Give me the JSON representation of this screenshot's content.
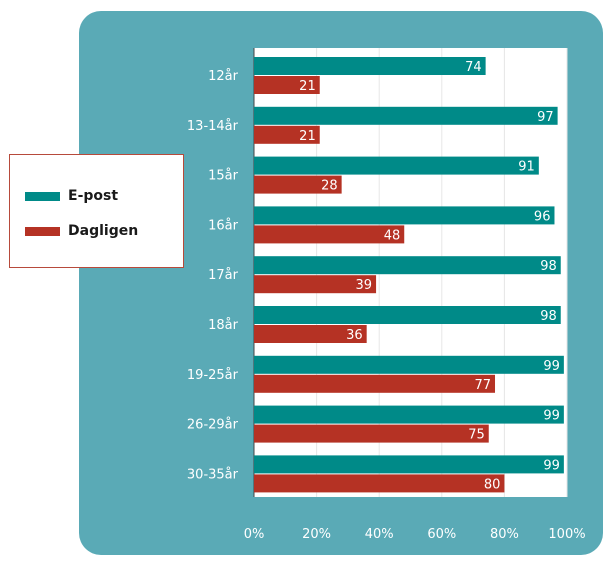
{
  "chart_data": {
    "type": "bar",
    "orientation": "horizontal",
    "categories": [
      "12år",
      "13-14år",
      "15år",
      "16år",
      "17år",
      "18år",
      "19-25år",
      "26-29år",
      "30-35år"
    ],
    "series": [
      {
        "name": "E-post",
        "color": "#008a88",
        "values": [
          74,
          97,
          91,
          96,
          98,
          98,
          99,
          99,
          99
        ]
      },
      {
        "name": "Dagligen",
        "color": "#b53224",
        "values": [
          21,
          21,
          28,
          48,
          39,
          36,
          77,
          75,
          80
        ]
      }
    ],
    "xticks": [
      "0%",
      "20%",
      "40%",
      "60%",
      "80%",
      "100%"
    ],
    "xlim": [
      0,
      100
    ],
    "legend_position": "left",
    "grid": true,
    "panel_color": "#5aaab6",
    "plot_background": "#ffffff",
    "data_label_color": "#ffffff",
    "tick_label_color": "#ffffff"
  }
}
